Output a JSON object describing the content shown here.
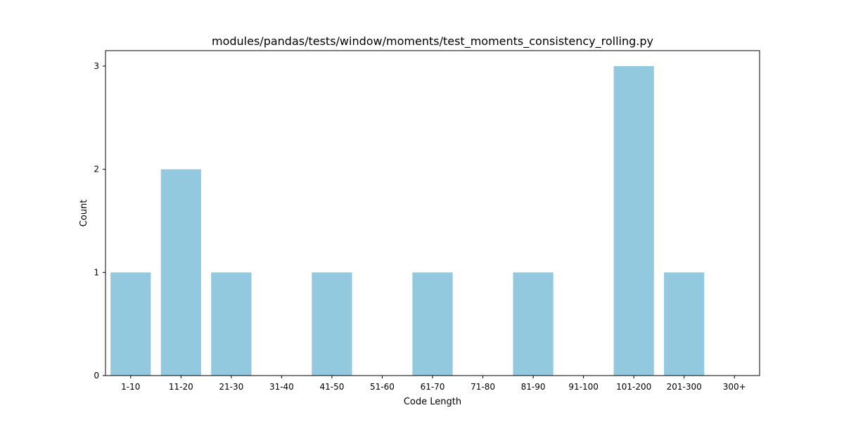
{
  "chart_data": {
    "type": "bar",
    "title": "modules/pandas/tests/window/moments/test_moments_consistency_rolling.py",
    "xlabel": "Code Length",
    "ylabel": "Count",
    "categories": [
      "1-10",
      "11-20",
      "21-30",
      "31-40",
      "41-50",
      "51-60",
      "61-70",
      "71-80",
      "81-90",
      "91-100",
      "101-200",
      "201-300",
      "300+"
    ],
    "values": [
      1,
      2,
      1,
      0,
      1,
      0,
      1,
      0,
      1,
      0,
      3,
      1,
      0
    ],
    "yticks": [
      0,
      1,
      2,
      3
    ],
    "ylim": [
      0,
      3.15
    ],
    "grid": false,
    "legend": "none",
    "bar_color": "#92c9de"
  }
}
